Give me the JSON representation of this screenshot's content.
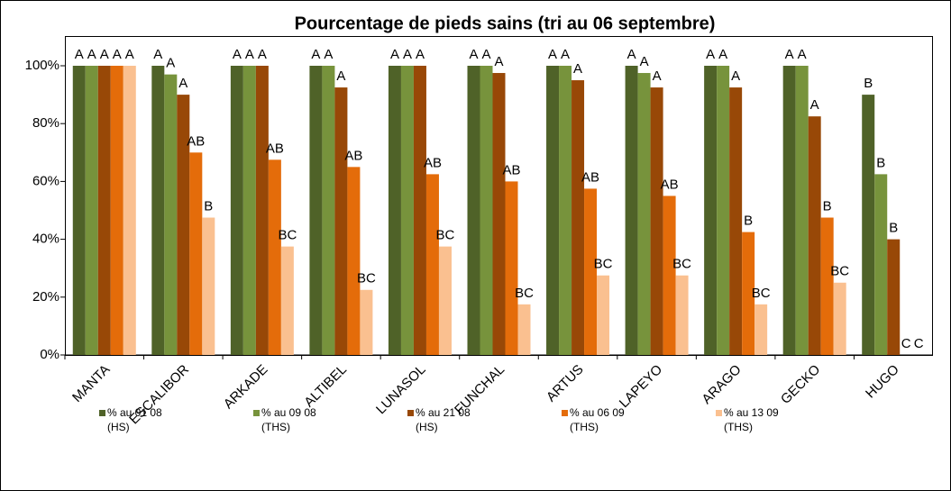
{
  "chart_data": {
    "type": "bar",
    "title": "Pourcentage de pieds sains (tri au 06 septembre)",
    "categories": [
      "MANTA",
      "ESCALIBOR",
      "ARKADE",
      "ALTIBEL",
      "LUNASOL",
      "FUNCHAL",
      "ARTUS",
      "LAPEYO",
      "ARAGO",
      "GECKO",
      "HUGO"
    ],
    "series": [
      {
        "name": [
          "% au 01 08",
          "(HS)"
        ],
        "color": "#4f6228",
        "values": [
          100,
          100,
          100,
          100,
          100,
          100,
          100,
          100,
          100,
          100,
          90
        ],
        "value_labels": [
          "A",
          "A",
          "A",
          "A",
          "A",
          "A",
          "A",
          "A",
          "A",
          "A",
          "B"
        ]
      },
      {
        "name": [
          "% au 09 08",
          "(THS)"
        ],
        "color": "#77933c",
        "values": [
          100,
          97,
          100,
          100,
          100,
          100,
          100,
          97.5,
          100,
          100,
          62.5
        ],
        "value_labels": [
          "A",
          "A",
          "A",
          "A",
          "A",
          "A",
          "A",
          "A",
          "A",
          "A",
          "B"
        ]
      },
      {
        "name": [
          "% au 21 08",
          "(HS)"
        ],
        "color": "#984807",
        "values": [
          100,
          90,
          100,
          92.5,
          100,
          97.5,
          95,
          92.5,
          92.5,
          82.5,
          40
        ],
        "value_labels": [
          "A",
          "A",
          "A",
          "A",
          "A",
          "A",
          "A",
          "A",
          "A",
          "A",
          "B"
        ]
      },
      {
        "name": [
          "% au 06 09",
          "(THS)"
        ],
        "color": "#e46c0a",
        "values": [
          100,
          70,
          67.5,
          65,
          62.5,
          60,
          57.5,
          55,
          42.5,
          47.5,
          0
        ],
        "value_labels": [
          "A",
          "AB",
          "AB",
          "AB",
          "AB",
          "AB",
          "AB",
          "AB",
          "B",
          "B",
          "C"
        ]
      },
      {
        "name": [
          "% au 13 09",
          "(THS)"
        ],
        "color": "#fac090",
        "values": [
          100,
          47.5,
          37.5,
          22.5,
          37.5,
          17.5,
          27.5,
          27.5,
          17.5,
          25,
          0
        ],
        "value_labels": [
          "A",
          "B",
          "BC",
          "BC",
          "BC",
          "BC",
          "BC",
          "BC",
          "BC",
          "BC",
          "C"
        ]
      }
    ],
    "ylim": [
      0,
      100
    ],
    "yticks": [
      {
        "value": 0,
        "label": "0%"
      },
      {
        "value": 20,
        "label": "20%"
      },
      {
        "value": 40,
        "label": "40%"
      },
      {
        "value": 60,
        "label": "60%"
      },
      {
        "value": 80,
        "label": "80%"
      },
      {
        "value": 100,
        "label": "100%"
      }
    ],
    "grid": false,
    "legend": "bottom"
  }
}
